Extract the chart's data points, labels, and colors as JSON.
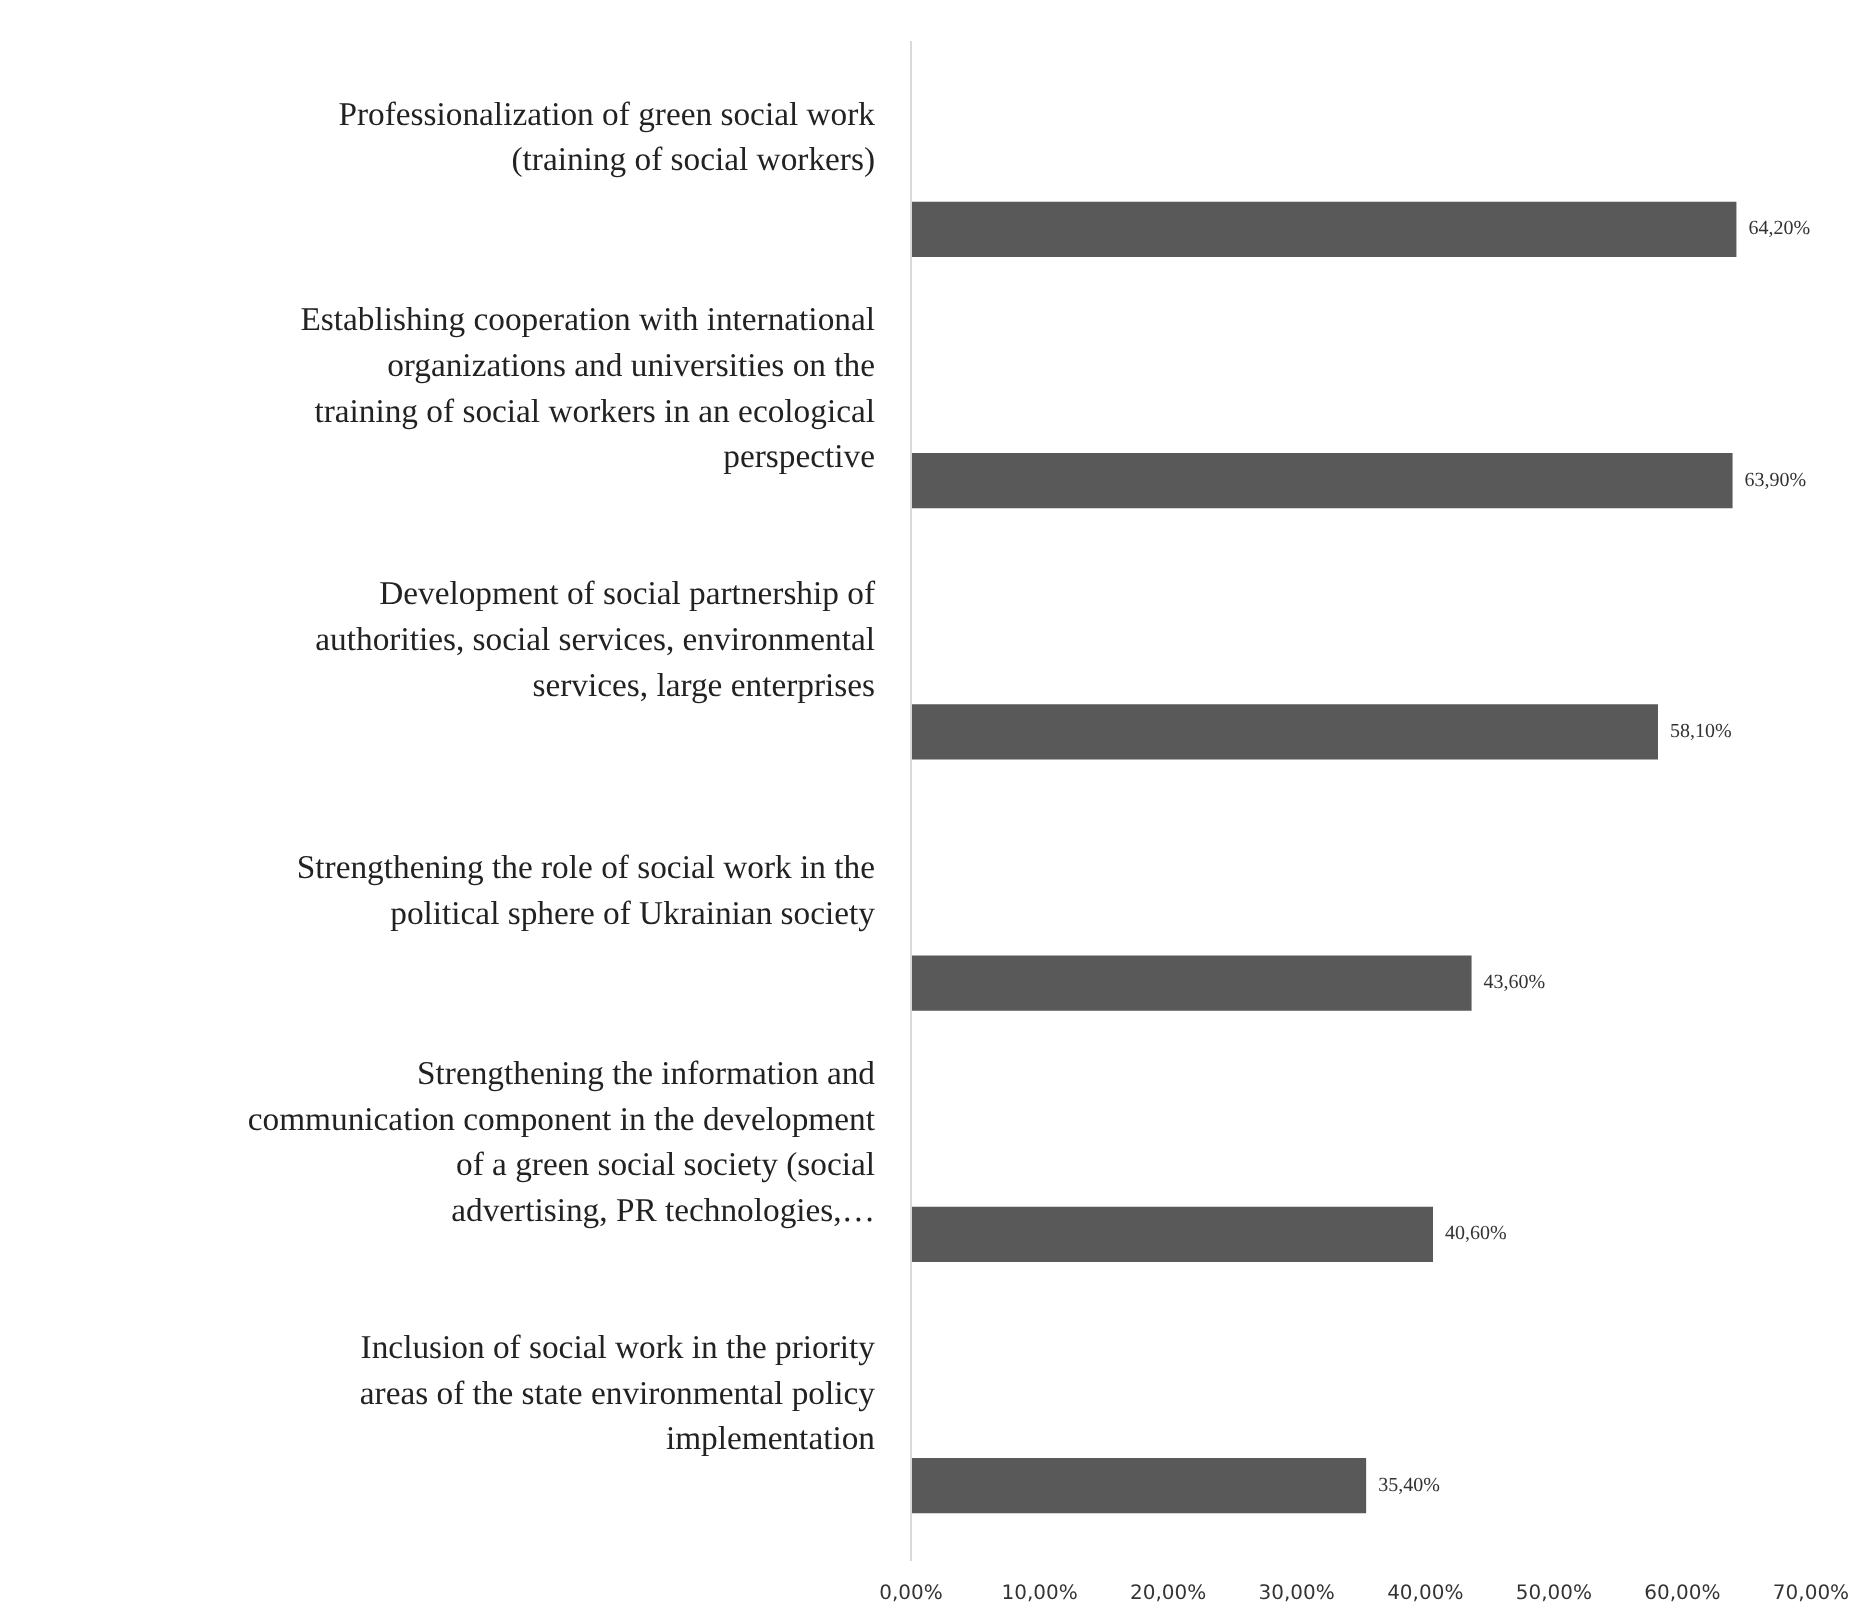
{
  "chart_data": {
    "type": "bar",
    "orientation": "horizontal",
    "categories": [
      "Professionalization of green social work (training of social workers)",
      "Establishing cooperation with international organizations and universities on the training of social workers in an ecological perspective",
      "Development of social partnership of authorities, social services, environmental services, large enterprises",
      "Strengthening the role of social work in the political sphere of Ukrainian society",
      "Strengthening the information and communication component in the development of a green social society (social advertising, PR technologies,…",
      "Inclusion of social work in the priority areas of the state environmental policy implementation"
    ],
    "values": [
      64.2,
      63.9,
      58.1,
      43.6,
      40.6,
      35.4
    ],
    "value_labels": [
      "64,20%",
      "63,90%",
      "58,10%",
      "43,60%",
      "40,60%",
      "35,40%"
    ],
    "color": "#595959",
    "xlim": [
      0,
      70
    ],
    "xticks": [
      {
        "value": 0,
        "label": "0,00%"
      },
      {
        "value": 10,
        "label": "10,00%"
      },
      {
        "value": 20,
        "label": "20,00%"
      },
      {
        "value": 30,
        "label": "30,00%"
      },
      {
        "value": 40,
        "label": "40,00%"
      },
      {
        "value": 50,
        "label": "50,00%"
      },
      {
        "value": 60,
        "label": "60,00%"
      },
      {
        "value": 70,
        "label": "70,00%"
      }
    ],
    "grid": false,
    "legend": false
  }
}
